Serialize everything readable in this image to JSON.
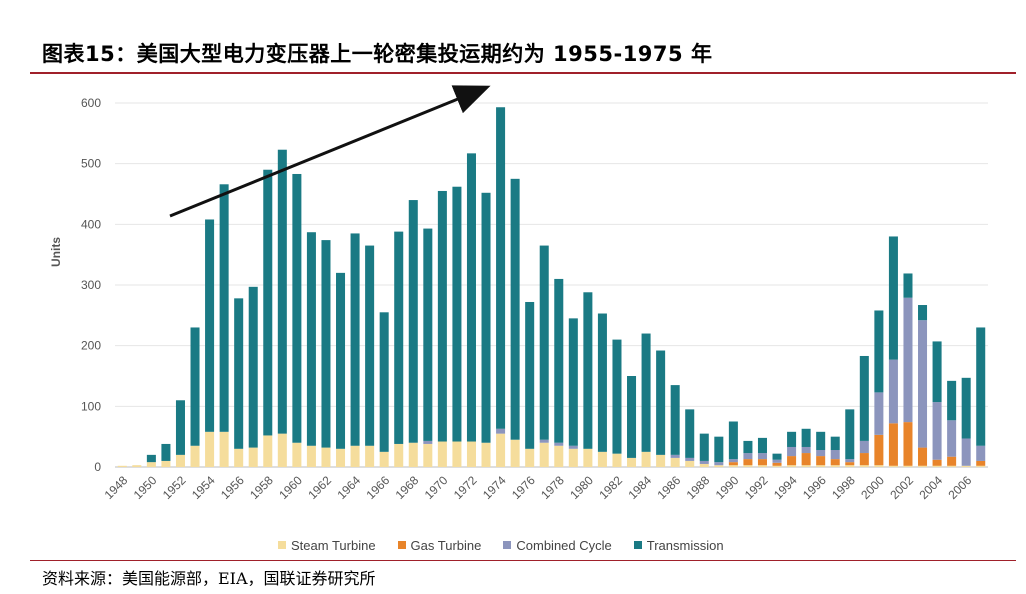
{
  "header": {
    "title": "图表15：美国大型电力变压器上一轮密集投运期约为 1955-1975 年"
  },
  "footer": {
    "source": "资料来源：美国能源部，EIA，国联证券研究所"
  },
  "colors": {
    "steam": "#f5dd9c",
    "gas": "#e8842a",
    "combined": "#8c95bd",
    "transmission": "#1a7a84",
    "rule": "#a0202a"
  },
  "chart_data": {
    "type": "bar",
    "stacked": true,
    "ylabel": "Units",
    "ylim": [
      0,
      600
    ],
    "yticks": [
      "0",
      "100",
      "200",
      "300",
      "400",
      "500",
      "600"
    ],
    "x_tick_labels": [
      "1948",
      "1950",
      "1952",
      "1954",
      "1956",
      "1958",
      "1960",
      "1962",
      "1964",
      "1966",
      "1968",
      "1970",
      "1972",
      "1974",
      "1976",
      "1978",
      "1980",
      "1982",
      "1984",
      "1986",
      "1988",
      "1990",
      "1992",
      "1994",
      "1996",
      "1998",
      "2000",
      "2002",
      "2004",
      "2006"
    ],
    "categories": [
      1948,
      1949,
      1950,
      1951,
      1952,
      1953,
      1954,
      1955,
      1956,
      1957,
      1958,
      1959,
      1960,
      1961,
      1962,
      1963,
      1964,
      1965,
      1966,
      1967,
      1968,
      1969,
      1970,
      1971,
      1972,
      1973,
      1974,
      1975,
      1976,
      1977,
      1978,
      1979,
      1980,
      1981,
      1982,
      1983,
      1984,
      1985,
      1986,
      1987,
      1988,
      1989,
      1990,
      1991,
      1992,
      1993,
      1994,
      1995,
      1996,
      1997,
      1998,
      1999,
      2000,
      2001,
      2002,
      2003,
      2004,
      2005,
      2006,
      2007
    ],
    "series": [
      {
        "name": "Steam Turbine",
        "values": [
          2,
          3,
          8,
          10,
          20,
          35,
          58,
          58,
          30,
          32,
          52,
          55,
          40,
          35,
          32,
          30,
          35,
          35,
          25,
          38,
          40,
          38,
          42,
          42,
          42,
          40,
          55,
          45,
          30,
          40,
          35,
          30,
          30,
          25,
          22,
          15,
          25,
          20,
          15,
          10,
          5,
          3,
          3,
          3,
          3,
          2,
          3,
          3,
          3,
          3,
          3,
          3,
          3,
          2,
          2,
          2,
          2,
          2,
          2,
          2
        ]
      },
      {
        "name": "Gas Turbine",
        "values": [
          0,
          0,
          0,
          0,
          0,
          0,
          0,
          0,
          0,
          0,
          0,
          0,
          0,
          0,
          0,
          0,
          0,
          0,
          0,
          0,
          0,
          0,
          0,
          0,
          0,
          0,
          0,
          0,
          0,
          0,
          0,
          0,
          0,
          0,
          0,
          0,
          0,
          0,
          0,
          0,
          0,
          0,
          5,
          10,
          10,
          5,
          15,
          20,
          15,
          10,
          5,
          20,
          50,
          70,
          72,
          30,
          10,
          15,
          0,
          8
        ]
      },
      {
        "name": "Combined Cycle",
        "values": [
          0,
          0,
          0,
          0,
          0,
          0,
          0,
          0,
          0,
          0,
          0,
          0,
          0,
          0,
          0,
          0,
          0,
          0,
          0,
          0,
          0,
          5,
          0,
          0,
          0,
          0,
          8,
          0,
          0,
          5,
          5,
          5,
          0,
          0,
          0,
          0,
          0,
          0,
          5,
          5,
          5,
          5,
          5,
          10,
          10,
          5,
          15,
          10,
          10,
          15,
          5,
          20,
          70,
          105,
          205,
          210,
          95,
          60,
          45,
          25
        ]
      },
      {
        "name": "Transmission",
        "values": [
          0,
          0,
          12,
          28,
          90,
          195,
          350,
          408,
          248,
          265,
          438,
          468,
          443,
          352,
          342,
          290,
          350,
          330,
          230,
          350,
          400,
          350,
          413,
          420,
          475,
          412,
          530,
          430,
          242,
          320,
          270,
          210,
          258,
          228,
          188,
          135,
          195,
          172,
          115,
          80,
          45,
          42,
          62,
          20,
          25,
          10,
          25,
          30,
          30,
          22,
          82,
          140,
          135,
          203,
          40,
          25,
          100,
          65,
          100,
          195
        ]
      }
    ]
  },
  "annotation": {
    "arrow": "trend-arrow"
  }
}
